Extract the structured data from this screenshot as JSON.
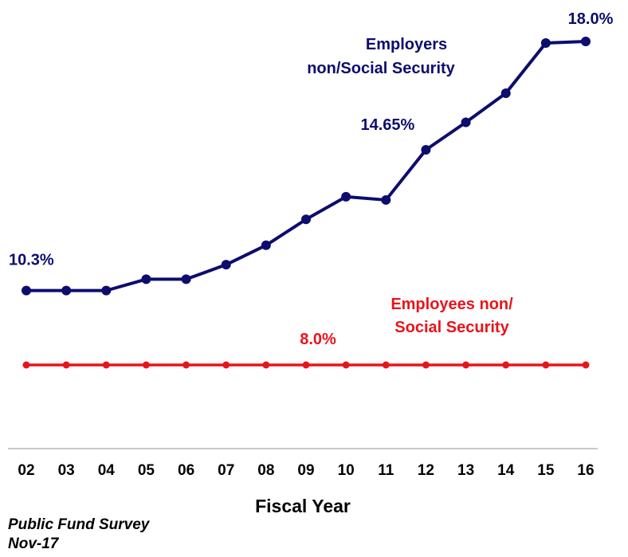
{
  "chart_data": {
    "type": "line",
    "xlabel": "Fiscal Year",
    "ylabel": "",
    "ylim": [
      0,
      20
    ],
    "grid": false,
    "legend": "none",
    "categories": [
      "02",
      "03",
      "04",
      "05",
      "06",
      "07",
      "08",
      "09",
      "10",
      "11",
      "12",
      "13",
      "14",
      "15",
      "16"
    ],
    "series": [
      {
        "name_lines": [
          "Employers",
          "non/Social Security"
        ],
        "color": "#0d0d6e",
        "values": [
          10.3,
          10.3,
          10.3,
          10.65,
          10.65,
          11.1,
          11.7,
          12.5,
          13.2,
          13.1,
          14.65,
          15.5,
          16.4,
          17.95,
          18.0
        ],
        "annotations": [
          {
            "index": 0,
            "text": "10.3%"
          },
          {
            "index": 10,
            "text": "14.65%"
          },
          {
            "index": 14,
            "text": "18.0%"
          }
        ]
      },
      {
        "name_lines": [
          "Employees non/",
          "Social Security"
        ],
        "color": "#e8141b",
        "values": [
          8.0,
          8.0,
          8.0,
          8.0,
          8.0,
          8.0,
          8.0,
          8.0,
          8.0,
          8.0,
          8.0,
          8.0,
          8.0,
          8.0,
          8.0
        ],
        "annotations": [
          {
            "index": 7,
            "text": "8.0%"
          }
        ]
      }
    ]
  },
  "source": {
    "line1": "Public Fund Survey",
    "line2": "Nov-17"
  }
}
